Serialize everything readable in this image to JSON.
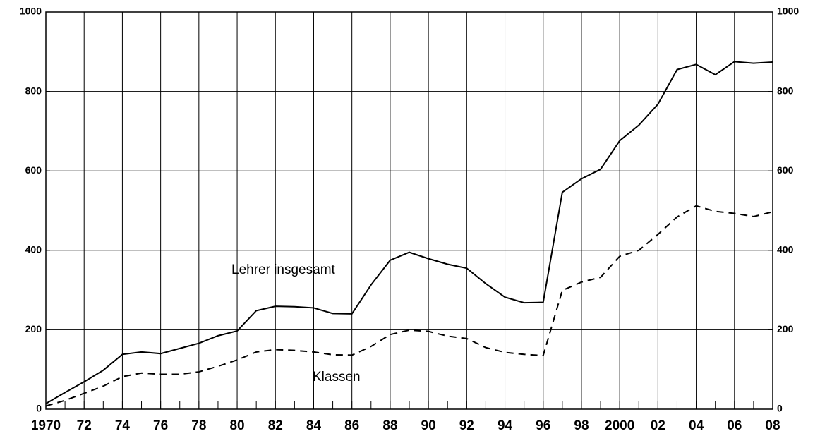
{
  "chart_data": {
    "type": "line",
    "x": [
      1970,
      1971,
      1972,
      1973,
      1974,
      1975,
      1976,
      1977,
      1978,
      1979,
      1980,
      1981,
      1982,
      1983,
      1984,
      1985,
      1986,
      1987,
      1988,
      1989,
      1990,
      1991,
      1992,
      1993,
      1994,
      1995,
      1996,
      1997,
      1998,
      1999,
      2000,
      2001,
      2002,
      2003,
      2004,
      2005,
      2006,
      2007,
      2008
    ],
    "series": [
      {
        "name": "Lehrer insgesamt",
        "color": "#000000",
        "dash": false,
        "values": [
          14,
          42,
          69,
          98,
          138,
          144,
          140,
          153,
          166,
          185,
          197,
          248,
          259,
          258,
          255,
          241,
          240,
          313,
          375,
          395,
          379,
          365,
          355,
          316,
          282,
          268,
          269,
          546,
          580,
          604,
          676,
          715,
          768,
          855,
          868,
          842,
          875,
          871,
          874
        ]
      },
      {
        "name": "Klassen",
        "color": "#000000",
        "dash": true,
        "values": [
          8,
          22,
          40,
          58,
          82,
          91,
          88,
          88,
          94,
          108,
          124,
          144,
          150,
          148,
          144,
          137,
          136,
          158,
          188,
          199,
          196,
          184,
          178,
          155,
          143,
          138,
          135,
          299,
          320,
          332,
          385,
          400,
          440,
          484,
          512,
          498,
          493,
          485,
          497
        ]
      }
    ],
    "xlim": [
      1970,
      2008
    ],
    "xticks": [
      {
        "value": 1970,
        "label": "1970"
      },
      {
        "value": 1972,
        "label": "72"
      },
      {
        "value": 1974,
        "label": "74"
      },
      {
        "value": 1976,
        "label": "76"
      },
      {
        "value": 1978,
        "label": "78"
      },
      {
        "value": 1980,
        "label": "80"
      },
      {
        "value": 1982,
        "label": "82"
      },
      {
        "value": 1984,
        "label": "84"
      },
      {
        "value": 1986,
        "label": "86"
      },
      {
        "value": 1988,
        "label": "88"
      },
      {
        "value": 1990,
        "label": "90"
      },
      {
        "value": 1992,
        "label": "92"
      },
      {
        "value": 1994,
        "label": "94"
      },
      {
        "value": 1996,
        "label": "96"
      },
      {
        "value": 1998,
        "label": "98"
      },
      {
        "value": 2000,
        "label": "2000"
      },
      {
        "value": 2002,
        "label": "02"
      },
      {
        "value": 2004,
        "label": "04"
      },
      {
        "value": 2006,
        "label": "06"
      },
      {
        "value": 2008,
        "label": "08"
      }
    ],
    "ylim": [
      0,
      1000
    ],
    "yticks": [
      0,
      200,
      400,
      600,
      800,
      1000
    ],
    "y2lim": [
      0,
      1000
    ],
    "y2ticks": [
      0,
      200,
      400,
      600,
      800,
      1000
    ],
    "grid": true
  }
}
